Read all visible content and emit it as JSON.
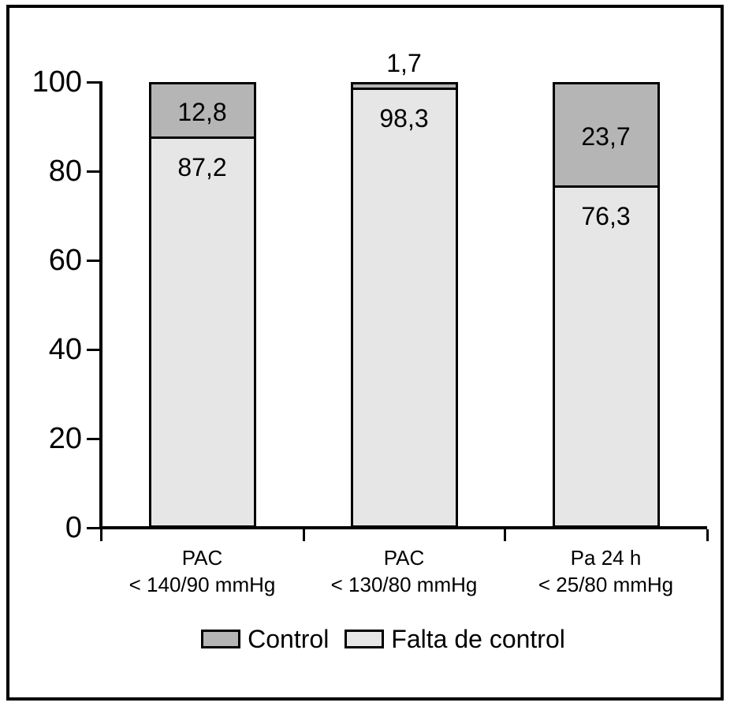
{
  "figure": {
    "background": "#ffffff",
    "frame_border_color": "#000000"
  },
  "chart_data": {
    "type": "bar",
    "stacked": true,
    "title": "",
    "xlabel": "",
    "ylabel": "",
    "categories": [
      [
        "PAC",
        "< 140/90 mmHg"
      ],
      [
        "PAC",
        "< 130/80 mmHg"
      ],
      [
        "Pa 24 h",
        "< 25/80 mmHg"
      ]
    ],
    "series": [
      {
        "name": "Control",
        "color": "#b5b5b5",
        "values": [
          12.8,
          1.7,
          23.7
        ],
        "value_labels": [
          "12,8",
          "1,7",
          "23,7"
        ]
      },
      {
        "name": "Falta de control",
        "color": "#e6e6e6",
        "values": [
          87.2,
          98.3,
          76.3
        ],
        "value_labels": [
          "87,2",
          "98,3",
          "76,3"
        ]
      }
    ],
    "ylim": [
      0,
      100
    ],
    "yticks": [
      0,
      20,
      40,
      60,
      80,
      100
    ],
    "grid": false,
    "legend_position": "bottom",
    "axis_color": "#000000",
    "text_color": "#000000"
  }
}
